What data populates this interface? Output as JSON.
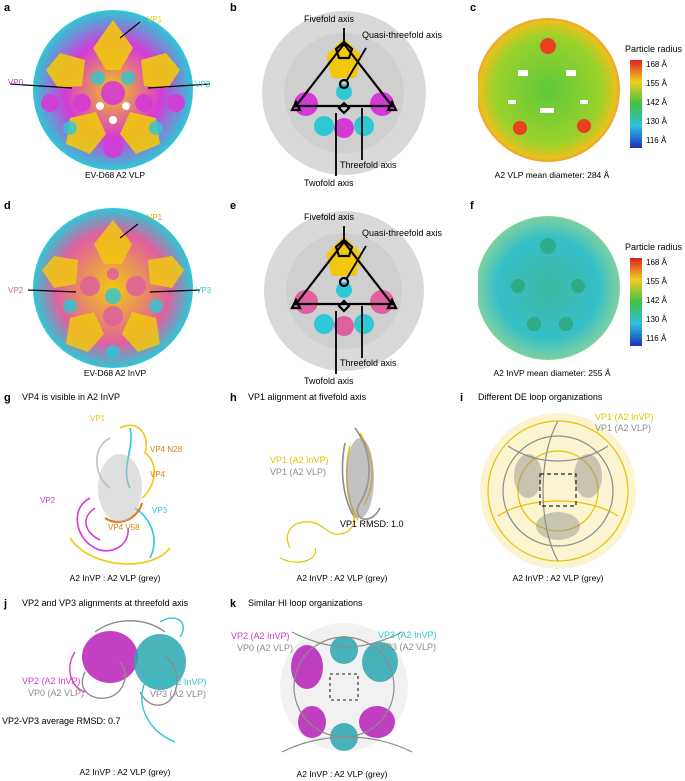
{
  "colors": {
    "vp1": "#f2c80f",
    "vp2_vlp": "#d63ad6",
    "vp3": "#2ec7d6",
    "vp2_invp": "#e0609e",
    "grey": "#bfbfbf",
    "vp4": "#e07b12"
  },
  "panels": {
    "a": {
      "letter": "a",
      "caption": "EV-D68 A2 VLP",
      "labels": {
        "vp1": "VP1",
        "vp0": "VP0",
        "vp3": "VP3"
      }
    },
    "b": {
      "letter": "b",
      "labels": {
        "fivefold": "Fivefold axis",
        "quasi": "Quasi-threefold axis",
        "threefold": "Threefold axis",
        "twofold": "Twofold axis"
      }
    },
    "c": {
      "letter": "c",
      "caption": "A2 VLP mean diameter: 284 Å"
    },
    "d": {
      "letter": "d",
      "caption": "EV-D68 A2 InVP",
      "labels": {
        "vp1": "VP1",
        "vp2": "VP2",
        "vp3": "VP3"
      }
    },
    "e": {
      "letter": "e",
      "labels": {
        "fivefold": "Fivefold axis",
        "quasi": "Quasi-threefold axis",
        "threefold": "Threefold axis",
        "twofold": "Twofold axis"
      }
    },
    "f": {
      "letter": "f",
      "caption": "A2 InVP mean diameter: 255 Å"
    },
    "g": {
      "letter": "g",
      "title": "VP4 is visible in A2 InVP",
      "caption": "A2 InVP : A2 VLP (grey)",
      "labels": {
        "vp1": "VP1",
        "vp4n28": "VP4 N28",
        "vp4": "VP4",
        "vp2": "VP2",
        "vp3": "VP3",
        "vp4v58": "VP4 V58"
      }
    },
    "h": {
      "letter": "h",
      "title": "VP1 alignment at fivefold axis",
      "caption": "A2 InVP : A2 VLP (grey)",
      "labels": {
        "invp": "VP1 (A2 InVP)",
        "vlp": "VP1 (A2 VLP)",
        "rmsd": "VP1 RMSD: 1.0"
      }
    },
    "i": {
      "letter": "i",
      "title": "Different DE loop organizations",
      "caption": "A2 InVP : A2 VLP (grey)",
      "labels": {
        "invp": "VP1 (A2 InVP)",
        "vlp": "VP1 (A2 VLP)"
      }
    },
    "j": {
      "letter": "j",
      "title": "VP2 and VP3 alignments at threefold axis",
      "caption": "A2 InVP : A2 VLP (grey)",
      "labels": {
        "vp2invp": "VP2 (A2 InVP)",
        "vp0vlp": "VP0 (A2 VLP)",
        "vp3invp": "VP3 (A2 InVP)",
        "vp3vlp": "VP3 (A2 VLP)",
        "rmsd": "VP2-VP3 average RMSD: 0.7"
      }
    },
    "k": {
      "letter": "k",
      "title": "Similar HI loop organizations",
      "caption": "A2 InVP : A2 VLP (grey)",
      "labels": {
        "vp2invp": "VP2 (A2 InVP)",
        "vp0vlp": "VP0 (A2 VLP)",
        "vp3invp": "VP3 (A2 InVP)",
        "vp3vlp": "VP3 (A2 VLP)"
      }
    }
  },
  "legend": {
    "title": "Particle radius",
    "ticks": [
      "168 Å",
      "155 Å",
      "142 Å",
      "130 Å",
      "116 Å"
    ]
  }
}
